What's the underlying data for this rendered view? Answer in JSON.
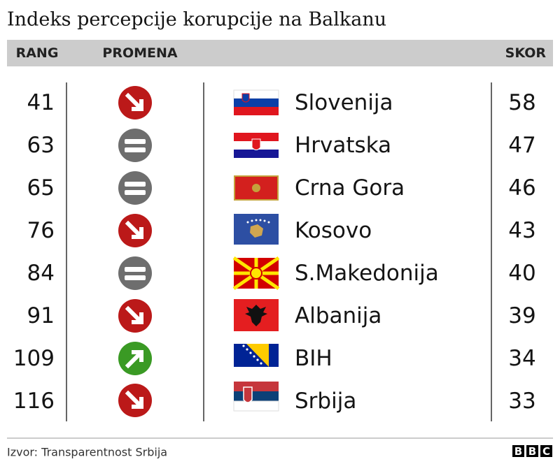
{
  "title": "Indeks percepcije korupcije na Balkanu",
  "header": {
    "rank": "RANG",
    "change": "PROMENA",
    "score": "SKOR"
  },
  "rows": [
    {
      "rank": 41,
      "country": "Slovenija",
      "score": 58
    },
    {
      "rank": 63,
      "country": "Hrvatska",
      "score": 47
    },
    {
      "rank": 65,
      "country": "Crna Gora",
      "score": 46
    },
    {
      "rank": 76,
      "country": "Kosovo",
      "score": 43
    },
    {
      "rank": 84,
      "country": "S.Makedonija",
      "score": 40
    },
    {
      "rank": 91,
      "country": "Albanija",
      "score": 39
    },
    {
      "rank": 109,
      "country": "BIH",
      "score": 34
    },
    {
      "rank": 116,
      "country": "Srbija",
      "score": 33
    }
  ],
  "source": "Izvor: Transparentnost Srbija",
  "logo": [
    "B",
    "B",
    "C"
  ]
}
